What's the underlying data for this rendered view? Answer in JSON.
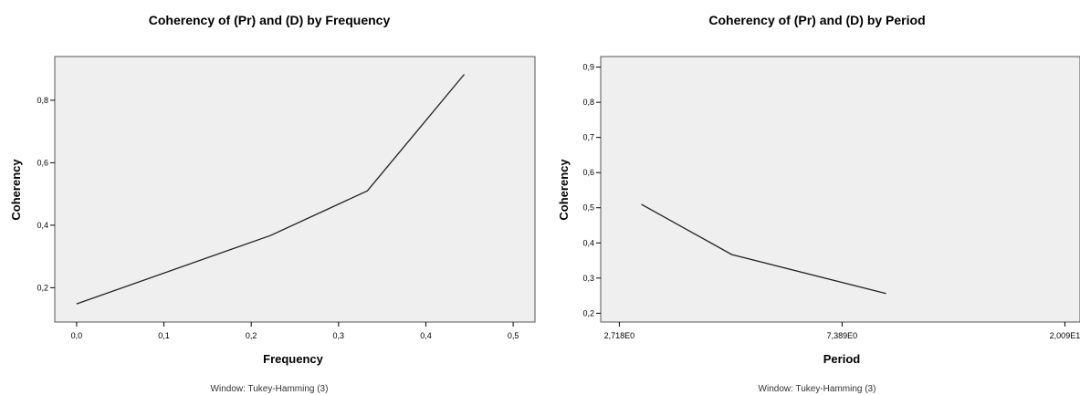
{
  "chart_data": [
    {
      "type": "line",
      "title": "Coherency of (Pr) and (D) by Frequency",
      "xlabel": "Frequency",
      "ylabel": "Coherency",
      "footnote": "Window: Tukey-Hamming (3)",
      "x_ticks": [
        0.0,
        0.1,
        0.2,
        0.3,
        0.4,
        0.5
      ],
      "x_tick_labels": [
        "0,0",
        "0,1",
        "0,2",
        "0,3",
        "0,4",
        "0,5"
      ],
      "y_ticks": [
        0.2,
        0.4,
        0.6,
        0.8
      ],
      "y_tick_labels": [
        "0,2",
        "0,4",
        "0,6",
        "0,8"
      ],
      "xlim": [
        -0.025,
        0.525
      ],
      "ylim": [
        0.09,
        0.94
      ],
      "x": [
        0.0,
        0.222,
        0.333,
        0.444
      ],
      "y": [
        0.148,
        0.367,
        0.51,
        0.883
      ],
      "grid": false,
      "colors": {
        "plot_bg": "#efefef",
        "line": "#222222"
      }
    },
    {
      "type": "line",
      "title": "Coherency of (Pr) and (D) by Period",
      "xlabel": "Period",
      "ylabel": "Coherency",
      "footnote": "Window: Tukey-Hamming (3)",
      "x_scale": "log",
      "x_ticks": [
        2.718,
        7.389,
        20.09
      ],
      "x_tick_labels": [
        "2,718E0",
        "7,389E0",
        "2,009E1"
      ],
      "y_ticks": [
        0.2,
        0.3,
        0.4,
        0.5,
        0.6,
        0.7,
        0.8,
        0.9
      ],
      "y_tick_labels": [
        "0,2",
        "0,3",
        "0,4",
        "0,5",
        "0,6",
        "0,7",
        "0,8",
        "0,9"
      ],
      "xlim": [
        2.5,
        21.5
      ],
      "ylim": [
        0.175,
        0.93
      ],
      "x": [
        3.0,
        4.5,
        9.0
      ],
      "y": [
        0.51,
        0.367,
        0.256
      ],
      "grid": false,
      "colors": {
        "plot_bg": "#efefef",
        "line": "#222222"
      }
    }
  ]
}
